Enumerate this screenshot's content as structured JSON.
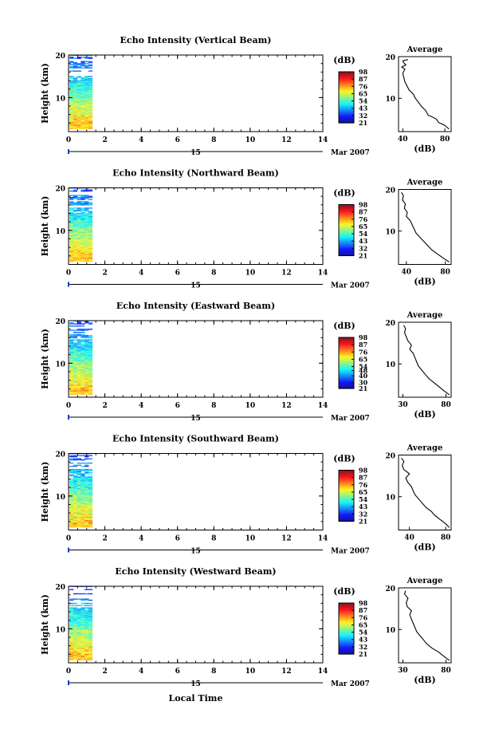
{
  "footer_label": "Local Time",
  "colorbar_unit": "(dB)",
  "avg_title": "Average",
  "avg_xlabel": "(dB)",
  "ylabel": "Height (km)",
  "date_day": "15",
  "date_month_year": "Mar 2007",
  "chart_data": [
    {
      "type": "heatmap",
      "title": "Echo Intensity (Vertical Beam)",
      "xlabel": "",
      "ylabel": "Height (km)",
      "xlim": [
        0,
        14
      ],
      "ylim": [
        2,
        20
      ],
      "x_ticks": [
        0,
        2,
        4,
        6,
        8,
        10,
        12,
        14
      ],
      "y_ticks": [
        10,
        20
      ],
      "data_time_range": [
        0.05,
        1.3
      ],
      "colorbar": {
        "label": "(dB)",
        "ticks": [
          21,
          32,
          43,
          54,
          65,
          76,
          87,
          98
        ],
        "range": [
          21,
          98
        ]
      },
      "avg_profile": {
        "xlim": [
          36,
          86
        ],
        "x_ticks": [
          40,
          80
        ],
        "y_ticks": [
          10,
          20
        ],
        "heights": [
          2.6,
          3.5,
          4.2,
          5.0,
          6.0,
          7.0,
          8.0,
          9.0,
          10.0,
          11.0,
          12.0,
          13.0,
          14.0,
          15.0,
          16.0,
          17.0,
          17.5,
          18.0,
          18.5,
          19.0,
          19.3
        ],
        "values": [
          84,
          80,
          74,
          72,
          64,
          62,
          58,
          55,
          52,
          50,
          46,
          44,
          42,
          41,
          40,
          42,
          39,
          43,
          41,
          40,
          45
        ]
      }
    },
    {
      "type": "heatmap",
      "title": "Echo Intensity (Northward Beam)",
      "xlabel": "",
      "ylabel": "Height (km)",
      "xlim": [
        0,
        14
      ],
      "ylim": [
        2,
        20
      ],
      "x_ticks": [
        0,
        2,
        4,
        6,
        8,
        10,
        12,
        14
      ],
      "y_ticks": [
        10,
        20
      ],
      "data_time_range": [
        0.05,
        1.3
      ],
      "colorbar": {
        "label": "(dB)",
        "ticks": [
          21,
          32,
          43,
          54,
          65,
          76,
          87,
          98
        ],
        "range": [
          21,
          98
        ]
      },
      "avg_profile": {
        "xlim": [
          32,
          86
        ],
        "x_ticks": [
          40,
          80
        ],
        "y_ticks": [
          10,
          20
        ],
        "heights": [
          2.6,
          3.5,
          4.5,
          5.5,
          6.5,
          7.5,
          8.5,
          9.5,
          10.5,
          11.5,
          12.5,
          13.5,
          14.5,
          15.5,
          16.5,
          17.5,
          18.5,
          19.3
        ],
        "values": [
          84,
          78,
          72,
          66,
          62,
          58,
          54,
          50,
          48,
          46,
          44,
          40,
          41,
          38,
          39,
          36,
          37,
          35
        ]
      }
    },
    {
      "type": "heatmap",
      "title": "Echo Intensity (Eastward Beam)",
      "xlabel": "",
      "ylabel": "Height (km)",
      "xlim": [
        0,
        14
      ],
      "ylim": [
        2,
        20
      ],
      "x_ticks": [
        0,
        2,
        4,
        6,
        8,
        10,
        12,
        14
      ],
      "y_ticks": [
        10,
        20
      ],
      "data_time_range": [
        0.05,
        1.3
      ],
      "colorbar": {
        "label": "(dB)",
        "ticks": [
          21,
          30,
          40,
          48,
          54,
          65,
          76,
          87,
          98
        ],
        "range": [
          21,
          98
        ]
      },
      "avg_profile": {
        "xlim": [
          25,
          86
        ],
        "x_ticks": [
          30,
          80
        ],
        "y_ticks": [
          10,
          20
        ],
        "heights": [
          2.6,
          3.5,
          4.5,
          5.5,
          6.5,
          7.5,
          8.5,
          9.5,
          10.5,
          11.5,
          12.5,
          13.5,
          14.5,
          15.5,
          16.5,
          17.5,
          18.5,
          19.3
        ],
        "values": [
          84,
          78,
          72,
          66,
          60,
          56,
          52,
          48,
          46,
          44,
          42,
          38,
          40,
          36,
          34,
          32,
          33,
          31
        ]
      }
    },
    {
      "type": "heatmap",
      "title": "Echo Intensity (Southward Beam)",
      "xlabel": "",
      "ylabel": "Height (km)",
      "xlim": [
        0,
        14
      ],
      "ylim": [
        2,
        20
      ],
      "x_ticks": [
        0,
        2,
        4,
        6,
        8,
        10,
        12,
        14
      ],
      "y_ticks": [
        10,
        20
      ],
      "data_time_range": [
        0.05,
        1.3
      ],
      "colorbar": {
        "label": "(dB)",
        "ticks": [
          21,
          32,
          43,
          54,
          65,
          76,
          87,
          98
        ],
        "range": [
          21,
          98
        ]
      },
      "avg_profile": {
        "xlim": [
          28,
          86
        ],
        "x_ticks": [
          40,
          80
        ],
        "y_ticks": [
          10,
          20
        ],
        "heights": [
          2.6,
          3.5,
          4.5,
          5.5,
          6.5,
          7.5,
          8.5,
          9.5,
          10.5,
          11.5,
          12.5,
          13.5,
          14.5,
          15.5,
          16.5,
          17.5,
          18.5,
          19.3
        ],
        "values": [
          84,
          80,
          74,
          68,
          64,
          58,
          54,
          50,
          46,
          44,
          42,
          38,
          36,
          40,
          34,
          32,
          34,
          31
        ]
      }
    },
    {
      "type": "heatmap",
      "title": "Echo Intensity (Westward Beam)",
      "xlabel": "Local Time",
      "ylabel": "Height (km)",
      "xlim": [
        0,
        14
      ],
      "ylim": [
        2,
        20
      ],
      "x_ticks": [
        0,
        2,
        4,
        6,
        8,
        10,
        12,
        14
      ],
      "y_ticks": [
        10,
        20
      ],
      "data_time_range": [
        0.05,
        1.3
      ],
      "colorbar": {
        "label": "(dB)",
        "ticks": [
          21,
          32,
          43,
          54,
          65,
          76,
          87,
          98
        ],
        "range": [
          21,
          98
        ]
      },
      "avg_profile": {
        "xlim": [
          25,
          86
        ],
        "x_ticks": [
          30,
          80
        ],
        "y_ticks": [
          10,
          20
        ],
        "heights": [
          2.6,
          3.5,
          4.5,
          5.5,
          6.5,
          7.5,
          8.5,
          9.5,
          10.5,
          11.5,
          12.5,
          13.5,
          14.5,
          15.5,
          16.5,
          17.5,
          18.5,
          19.3
        ],
        "values": [
          84,
          78,
          72,
          64,
          58,
          54,
          50,
          46,
          44,
          42,
          40,
          38,
          40,
          35,
          34,
          36,
          32,
          33
        ]
      }
    }
  ]
}
